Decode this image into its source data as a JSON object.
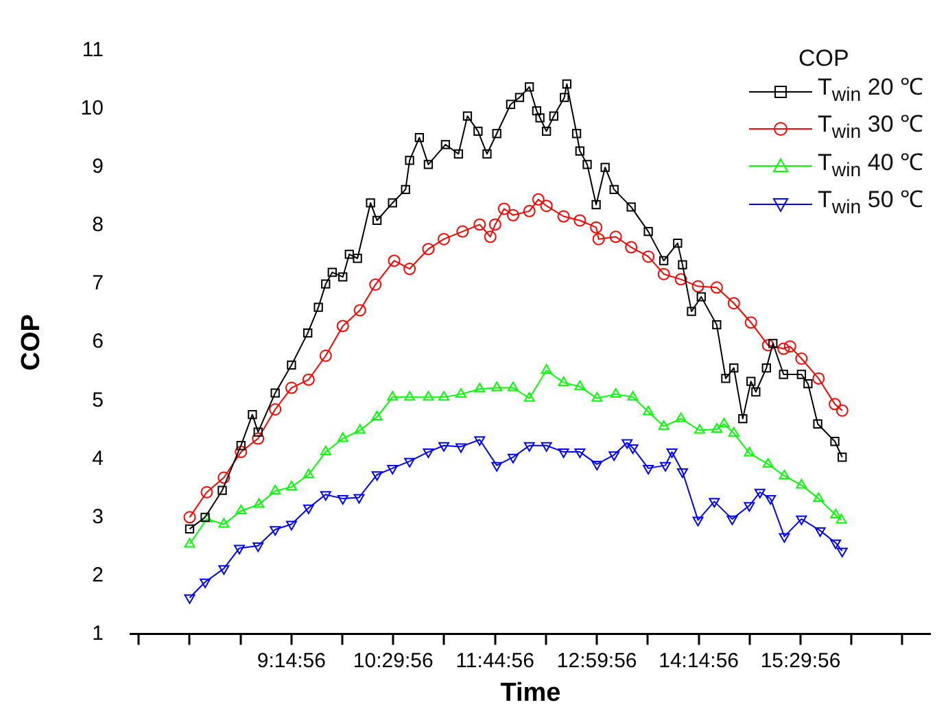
{
  "chart_data": {
    "type": "line",
    "xlabel": "Time",
    "ylabel": "COP",
    "legend_title": "COP",
    "legend": "top right",
    "grid": false,
    "line_style": "solid",
    "xlim": [
      7.28,
      17.09
    ],
    "ylim": [
      1,
      11
    ],
    "xticks": [
      {
        "value": 7.3739,
        "label": null
      },
      {
        "value": 7.9989,
        "label": null
      },
      {
        "value": 8.6239,
        "label": null
      },
      {
        "value": 9.2489,
        "label": "9:14:56"
      },
      {
        "value": 9.8739,
        "label": null
      },
      {
        "value": 10.4989,
        "label": "10:29:56"
      },
      {
        "value": 11.1239,
        "label": null
      },
      {
        "value": 11.7489,
        "label": "11:44:56"
      },
      {
        "value": 12.3739,
        "label": null
      },
      {
        "value": 12.9989,
        "label": "12:59:56"
      },
      {
        "value": 13.6239,
        "label": null
      },
      {
        "value": 14.2489,
        "label": "14:14:56"
      },
      {
        "value": 14.8739,
        "label": null
      },
      {
        "value": 15.4989,
        "label": "15:29:56"
      },
      {
        "value": 16.1239,
        "label": null
      },
      {
        "value": 16.7489,
        "label": null
      }
    ],
    "yticks": [
      1,
      2,
      3,
      4,
      5,
      6,
      7,
      8,
      9,
      10,
      11
    ],
    "series": [
      {
        "name": "T$_{win}$ 20 ℃",
        "color": "#000000",
        "marker": "square",
        "x": [
          8.0,
          8.19,
          8.4,
          8.63,
          8.77,
          8.84,
          9.05,
          9.25,
          9.45,
          9.58,
          9.67,
          9.75,
          9.88,
          9.96,
          10.06,
          10.22,
          10.3,
          10.49,
          10.65,
          10.7,
          10.82,
          10.93,
          11.14,
          11.3,
          11.41,
          11.54,
          11.65,
          11.77,
          11.94,
          12.05,
          12.17,
          12.26,
          12.3,
          12.38,
          12.47,
          12.6,
          12.63,
          12.75,
          12.79,
          12.88,
          12.99,
          13.1,
          13.21,
          13.42,
          13.63,
          13.82,
          13.99,
          14.05,
          14.16,
          14.28,
          14.47,
          14.58,
          14.68,
          14.79,
          14.89,
          14.95,
          15.08,
          15.16,
          15.29,
          15.51,
          15.59,
          15.71,
          15.92,
          16.01
        ],
        "values": [
          2.8,
          3.0,
          3.46,
          4.23,
          4.76,
          4.46,
          5.13,
          5.61,
          6.16,
          6.6,
          7.0,
          7.2,
          7.12,
          7.51,
          7.44,
          8.39,
          8.09,
          8.39,
          8.62,
          9.12,
          9.51,
          9.05,
          9.39,
          9.23,
          9.88,
          9.62,
          9.23,
          9.58,
          10.08,
          10.2,
          10.38,
          9.97,
          9.85,
          9.62,
          9.88,
          10.2,
          10.43,
          9.58,
          9.28,
          9.05,
          8.36,
          9.0,
          8.62,
          8.32,
          7.9,
          7.4,
          7.7,
          7.33,
          6.53,
          6.78,
          6.3,
          5.38,
          5.56,
          4.69,
          5.33,
          5.15,
          5.56,
          5.98,
          5.45,
          5.45,
          5.29,
          4.6,
          4.3,
          4.03
        ]
      },
      {
        "name": "T$_{win}$ 30 ℃",
        "color": "#ff0000",
        "marker": "circle",
        "x": [
          8.0,
          8.21,
          8.42,
          8.63,
          8.84,
          9.05,
          9.25,
          9.46,
          9.67,
          9.88,
          10.09,
          10.28,
          10.51,
          10.7,
          10.93,
          11.12,
          11.35,
          11.56,
          11.69,
          11.75,
          11.86,
          11.97,
          12.17,
          12.28,
          12.38,
          12.59,
          12.79,
          12.99,
          13.02,
          13.23,
          13.42,
          13.63,
          13.82,
          14.03,
          14.24,
          14.47,
          14.68,
          14.89,
          15.1,
          15.29,
          15.37,
          15.51,
          15.72,
          15.92,
          16.01
        ],
        "values": [
          3.0,
          3.43,
          3.68,
          4.12,
          4.35,
          4.85,
          5.22,
          5.36,
          5.77,
          6.28,
          6.55,
          6.99,
          7.4,
          7.26,
          7.6,
          7.77,
          7.9,
          8.02,
          7.81,
          8.02,
          8.29,
          8.18,
          8.25,
          8.45,
          8.34,
          8.16,
          8.09,
          7.97,
          7.77,
          7.81,
          7.63,
          7.47,
          7.17,
          7.08,
          6.96,
          6.94,
          6.67,
          6.34,
          5.95,
          5.89,
          5.93,
          5.72,
          5.38,
          4.94,
          4.83
        ]
      },
      {
        "name": "T$_{win}$ 40 ℃",
        "color": "#00ff00",
        "marker": "triangle",
        "x": [
          8.0,
          8.21,
          8.42,
          8.63,
          8.85,
          9.05,
          9.25,
          9.46,
          9.67,
          9.88,
          10.09,
          10.3,
          10.49,
          10.7,
          10.93,
          11.12,
          11.33,
          11.56,
          11.77,
          11.97,
          12.17,
          12.38,
          12.59,
          12.79,
          13.0,
          13.23,
          13.44,
          13.63,
          13.82,
          14.03,
          14.26,
          14.47,
          14.56,
          14.68,
          14.87,
          15.1,
          15.3,
          15.51,
          15.72,
          15.93,
          16.0
        ],
        "values": [
          2.54,
          2.97,
          2.88,
          3.11,
          3.22,
          3.45,
          3.52,
          3.73,
          4.12,
          4.35,
          4.49,
          4.72,
          5.06,
          5.06,
          5.06,
          5.06,
          5.11,
          5.2,
          5.22,
          5.22,
          5.04,
          5.52,
          5.31,
          5.24,
          5.04,
          5.11,
          5.06,
          4.81,
          4.56,
          4.69,
          4.49,
          4.51,
          4.6,
          4.44,
          4.1,
          3.91,
          3.71,
          3.55,
          3.32,
          3.04,
          2.95
        ]
      },
      {
        "name": "T$_{win}$ 50 ℃",
        "color": "#0000ff",
        "marker": "triangle_down",
        "x": [
          8.0,
          8.19,
          8.42,
          8.61,
          8.84,
          9.05,
          9.25,
          9.46,
          9.67,
          9.88,
          10.08,
          10.3,
          10.49,
          10.7,
          10.93,
          11.12,
          11.33,
          11.56,
          11.77,
          11.97,
          12.17,
          12.38,
          12.59,
          12.79,
          13.0,
          13.21,
          13.37,
          13.44,
          13.63,
          13.84,
          13.92,
          14.05,
          14.24,
          14.44,
          14.66,
          14.87,
          15.0,
          15.13,
          15.3,
          15.51,
          15.74,
          15.93,
          16.01
        ],
        "values": [
          1.62,
          1.89,
          2.12,
          2.47,
          2.51,
          2.79,
          2.88,
          3.16,
          3.39,
          3.32,
          3.34,
          3.73,
          3.84,
          3.96,
          4.12,
          4.23,
          4.21,
          4.33,
          3.89,
          4.03,
          4.23,
          4.23,
          4.12,
          4.12,
          3.91,
          4.07,
          4.28,
          4.19,
          3.84,
          3.89,
          4.12,
          3.78,
          2.95,
          3.27,
          2.97,
          3.2,
          3.43,
          3.32,
          2.67,
          2.97,
          2.77,
          2.56,
          2.42
        ]
      }
    ]
  }
}
